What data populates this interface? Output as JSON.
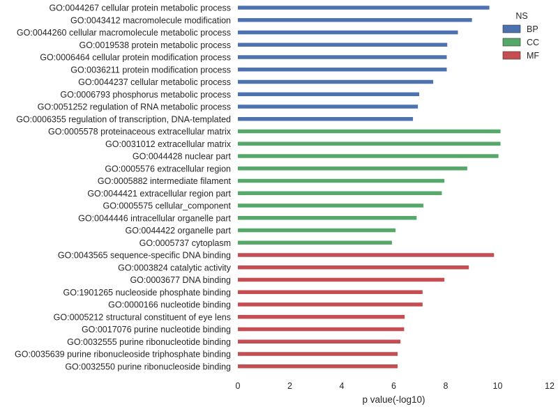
{
  "chart_data": {
    "type": "bar",
    "orientation": "horizontal",
    "xlabel": "p value(-log10)",
    "ylabel": "",
    "xlim": [
      0,
      12
    ],
    "xticks": [
      0,
      2,
      4,
      6,
      8,
      10,
      12
    ],
    "grid": false,
    "legend": {
      "title": "NS",
      "placement": "top-right",
      "entries": [
        {
          "name": "BP",
          "color": "#4c72b0"
        },
        {
          "name": "CC",
          "color": "#55a868"
        },
        {
          "name": "MF",
          "color": "#c44e52"
        }
      ]
    },
    "categories": [
      {
        "label": "GO:0044267 cellular protein metabolic process",
        "group": "BP",
        "value": 9.68
      },
      {
        "label": "GO:0043412 macromolecule modification",
        "group": "BP",
        "value": 9.01
      },
      {
        "label": "GO:0044260 cellular macromolecule metabolic process",
        "group": "BP",
        "value": 8.47
      },
      {
        "label": "GO:0019538 protein metabolic process",
        "group": "BP",
        "value": 8.06
      },
      {
        "label": "GO:0006464 cellular protein modification process",
        "group": "BP",
        "value": 8.04
      },
      {
        "label": "GO:0036211 protein modification process",
        "group": "BP",
        "value": 8.04
      },
      {
        "label": "GO:0044237 cellular metabolic process",
        "group": "BP",
        "value": 7.52
      },
      {
        "label": "GO:0006793 phosphorus metabolic process",
        "group": "BP",
        "value": 6.98
      },
      {
        "label": "GO:0051252 regulation of RNA metabolic process",
        "group": "BP",
        "value": 6.93
      },
      {
        "label": "GO:0006355 regulation of transcription, DNA-templated",
        "group": "BP",
        "value": 6.74
      },
      {
        "label": "GO:0005578 proteinaceous extracellular matrix",
        "group": "CC",
        "value": 10.11
      },
      {
        "label": "GO:0031012 extracellular matrix",
        "group": "CC",
        "value": 10.11
      },
      {
        "label": "GO:0044428 nuclear part",
        "group": "CC",
        "value": 10.03
      },
      {
        "label": "GO:0005576 extracellular region",
        "group": "CC",
        "value": 8.83
      },
      {
        "label": "GO:0005882 intermediate filament",
        "group": "CC",
        "value": 7.95
      },
      {
        "label": "GO:0044421 extracellular region part",
        "group": "CC",
        "value": 7.85
      },
      {
        "label": "GO:0005575 cellular_component",
        "group": "CC",
        "value": 7.14
      },
      {
        "label": "GO:0044446 intracellular organelle part",
        "group": "CC",
        "value": 6.88
      },
      {
        "label": "GO:0044422 organelle part",
        "group": "CC",
        "value": 6.07
      },
      {
        "label": "GO:0005737 cytoplasm",
        "group": "CC",
        "value": 5.93
      },
      {
        "label": "GO:0043565 sequence-specific DNA binding",
        "group": "MF",
        "value": 9.86
      },
      {
        "label": "GO:0003824 catalytic activity",
        "group": "MF",
        "value": 8.89
      },
      {
        "label": "GO:0003677 DNA binding",
        "group": "MF",
        "value": 7.95
      },
      {
        "label": "GO:1901265 nucleoside phosphate binding",
        "group": "MF",
        "value": 7.11
      },
      {
        "label": "GO:0000166 nucleotide binding",
        "group": "MF",
        "value": 7.11
      },
      {
        "label": "GO:0005212 structural constituent of eye lens",
        "group": "MF",
        "value": 6.42
      },
      {
        "label": "GO:0017076 purine nucleotide binding",
        "group": "MF",
        "value": 6.4
      },
      {
        "label": "GO:0032555 purine ribonucleotide binding",
        "group": "MF",
        "value": 6.26
      },
      {
        "label": "GO:0035639 purine ribonucleoside triphosphate binding",
        "group": "MF",
        "value": 6.15
      },
      {
        "label": "GO:0032550 purine ribonucleoside binding",
        "group": "MF",
        "value": 6.15
      }
    ]
  }
}
